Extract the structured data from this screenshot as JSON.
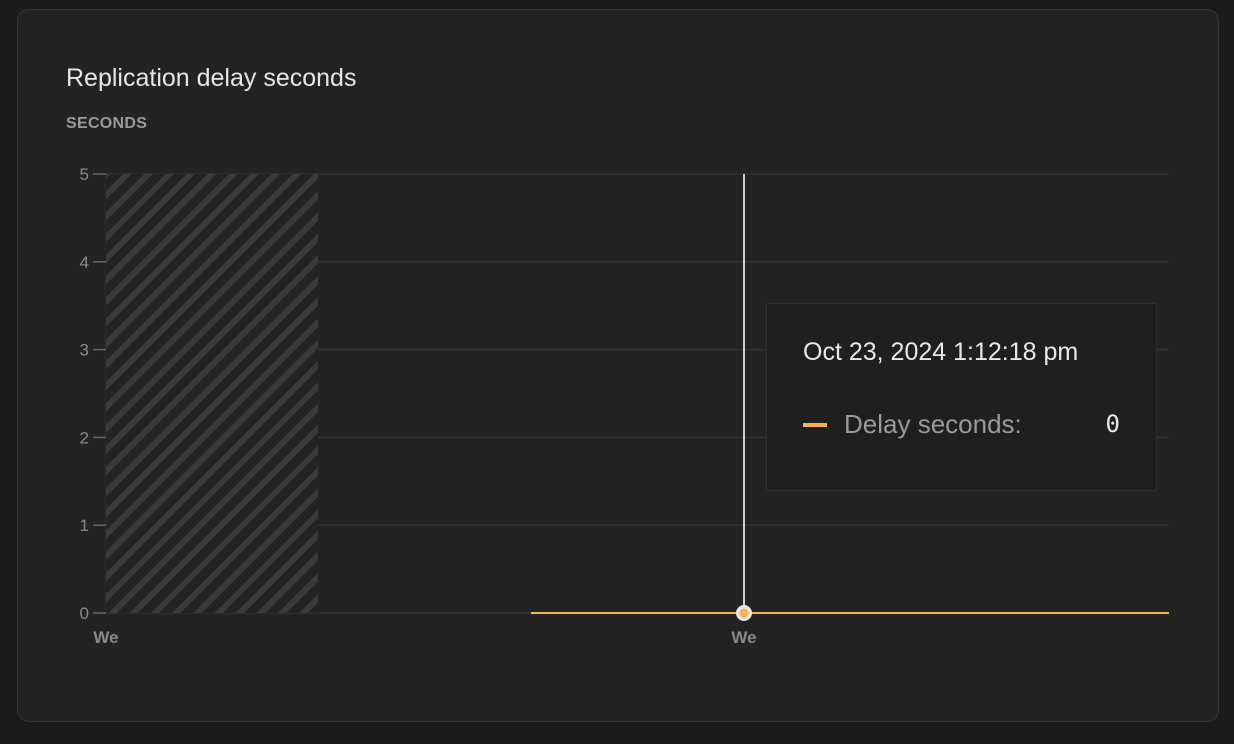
{
  "card": {
    "title": "Replication delay seconds",
    "unit_label": "SECONDS"
  },
  "chart_data": {
    "type": "line",
    "title": "Replication delay seconds",
    "ylabel": "SECONDS",
    "ylim": [
      0,
      5
    ],
    "y_ticks": [
      "0",
      "1",
      "2",
      "3",
      "4",
      "5"
    ],
    "x_ticks": [
      "We",
      "We"
    ],
    "grid": true,
    "no_data_region": "hatched at start of range",
    "series": [
      {
        "name": "Delay seconds",
        "color": "#f8b24a",
        "values": [
          0,
          0
        ]
      }
    ]
  },
  "tooltip": {
    "date": "Oct 23, 2024 1:12:18 pm",
    "series_label": "Delay seconds:",
    "value": "0",
    "color": "#f8b24a"
  }
}
